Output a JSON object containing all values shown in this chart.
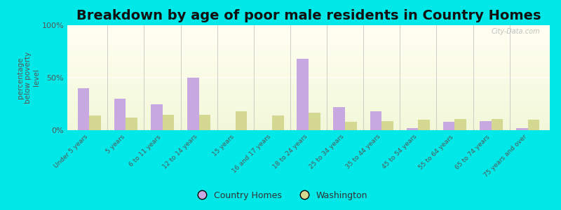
{
  "title": "Breakdown by age of poor male residents in Country Homes",
  "ylabel": "percentage\nbelow poverty\nlevel",
  "categories": [
    "Under 5 years",
    "5 years",
    "6 to 11 years",
    "12 to 14 years",
    "15 years",
    "16 and 17 years",
    "18 to 24 years",
    "25 to 34 years",
    "35 to 44 years",
    "45 to 54 years",
    "55 to 64 years",
    "65 to 74 years",
    "75 years and over"
  ],
  "country_homes": [
    40,
    30,
    25,
    50,
    0,
    0,
    68,
    22,
    18,
    2,
    8,
    9,
    2
  ],
  "washington": [
    14,
    12,
    15,
    15,
    18,
    14,
    17,
    8,
    9,
    10,
    11,
    11,
    10
  ],
  "bar_color_ch": "#c8a8e0",
  "bar_color_wa": "#d4d890",
  "background_outer": "#00e8e8",
  "ylim": [
    0,
    100
  ],
  "yticks": [
    0,
    50,
    100
  ],
  "ytick_labels": [
    "0%",
    "50%",
    "100%"
  ],
  "legend_ch": "Country Homes",
  "legend_wa": "Washington",
  "title_fontsize": 14,
  "watermark": "City-Data.com"
}
